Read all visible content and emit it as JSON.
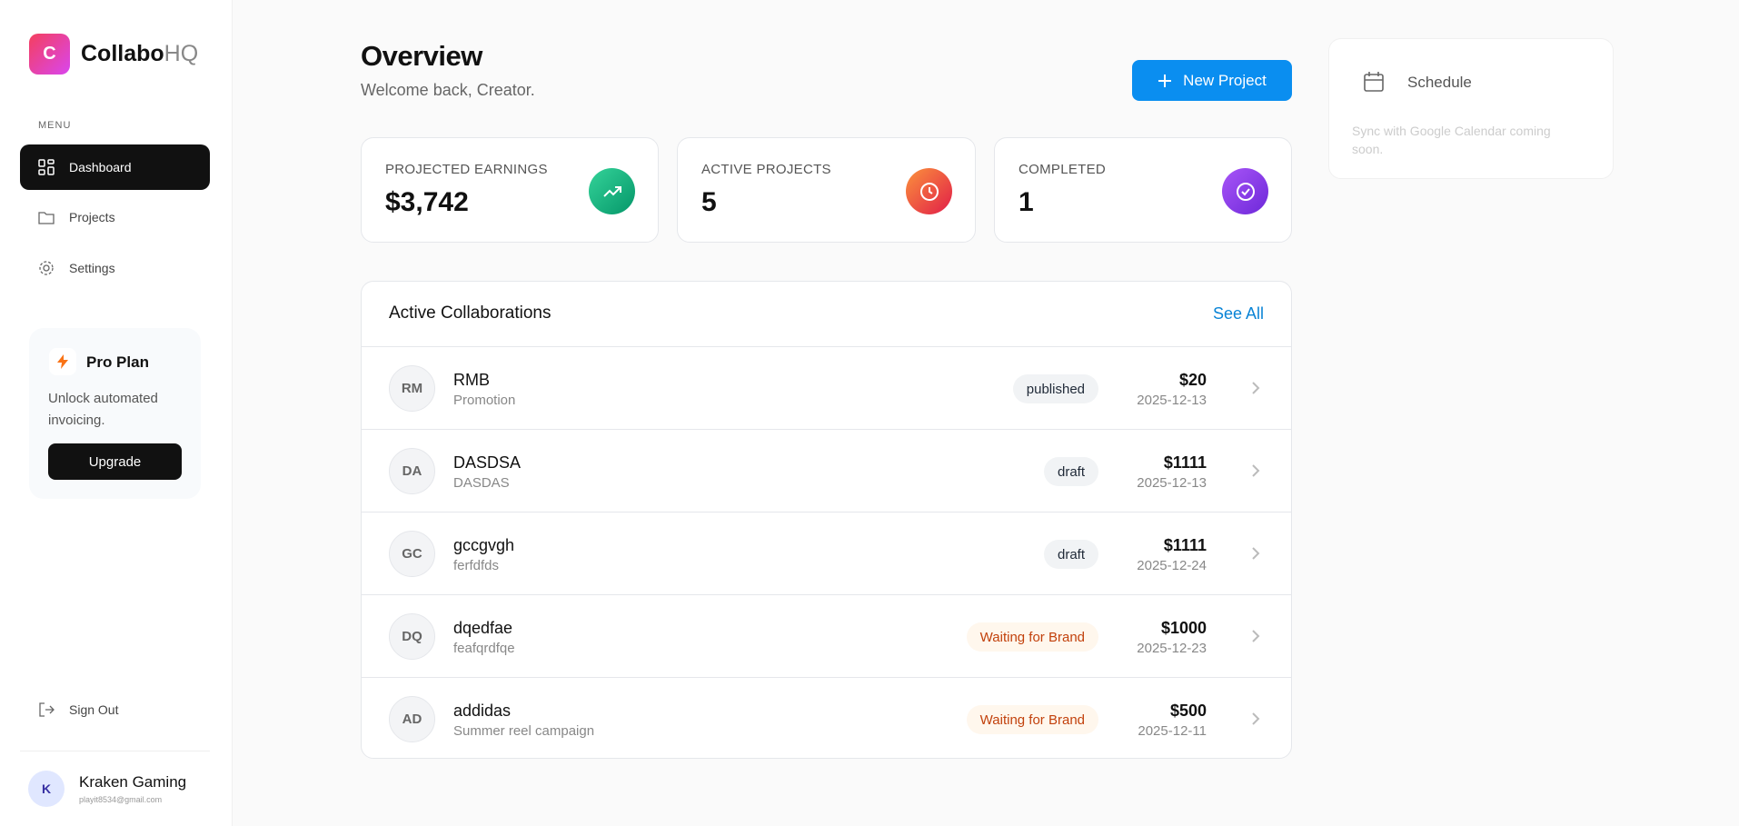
{
  "brand": {
    "logo_letter": "C",
    "name_main": "Collabo",
    "name_accent": "HQ"
  },
  "sidebar": {
    "menu_label": "MENU",
    "nav": [
      "Dashboard",
      "Projects",
      "Settings"
    ],
    "promo": {
      "title": "Pro Plan",
      "text": "Unlock automated invoicing.",
      "button": "Upgrade"
    },
    "sign_out": "Sign Out",
    "user": {
      "initial": "K",
      "name": "Kraken Gaming",
      "email": "playit8534@gmail.com"
    }
  },
  "header": {
    "title": "Overview",
    "subtitle": "Welcome back, Creator.",
    "button": "New Project"
  },
  "stats": [
    {
      "label": "PROJECTED EARNINGS",
      "value": "$3,742"
    },
    {
      "label": "ACTIVE PROJECTS",
      "value": "5"
    },
    {
      "label": "COMPLETED",
      "value": "1"
    }
  ],
  "schedule": {
    "title": "Schedule",
    "text": "Sync with Google Calendar coming soon."
  },
  "collaborations": {
    "title": "Active Collaborations",
    "link": "See All",
    "rows": [
      {
        "initials": "RM",
        "name": "RMB",
        "subtitle": "Promotion",
        "status": "published",
        "badge_color": "#1f2937",
        "badge_bg": "#f1f3f5",
        "amount": "$20",
        "date": "2025-12-13"
      },
      {
        "initials": "DA",
        "name": "DASDSA",
        "subtitle": "DASDAS",
        "status": "draft",
        "badge_color": "#1f2937",
        "badge_bg": "#f1f3f5",
        "amount": "$1111",
        "date": "2025-12-13"
      },
      {
        "initials": "GC",
        "name": "gccgvgh",
        "subtitle": "ferfdfds",
        "status": "draft",
        "badge_color": "#1f2937",
        "badge_bg": "#f1f3f5",
        "amount": "$1111",
        "date": "2025-12-24"
      },
      {
        "initials": "DQ",
        "name": "dqedfae",
        "subtitle": "feafqrdfqe",
        "status": "Waiting for Brand",
        "badge_color": "#c2410c",
        "badge_bg": "#fff7ed",
        "amount": "$1000",
        "date": "2025-12-23"
      },
      {
        "initials": "AD",
        "name": "addidas",
        "subtitle": "Summer reel campaign",
        "status": "Waiting for Brand",
        "badge_color": "#c2410c",
        "badge_bg": "#fff7ed",
        "amount": "$500",
        "date": "2025-12-11"
      }
    ]
  }
}
